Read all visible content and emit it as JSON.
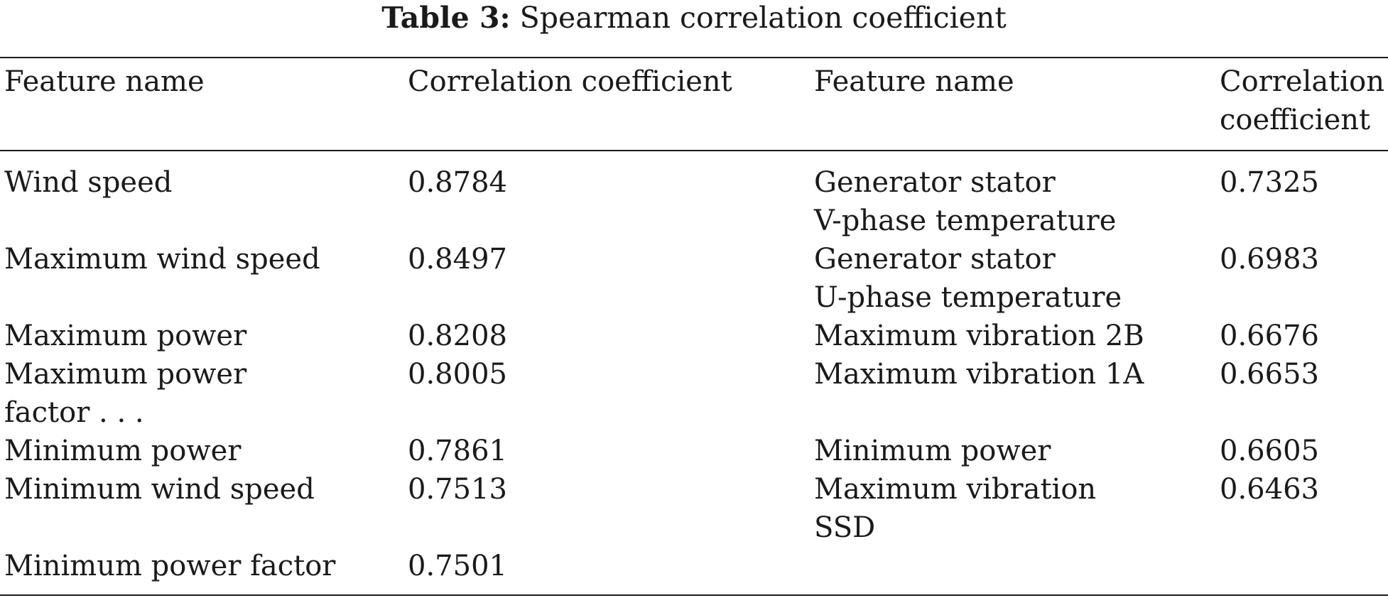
{
  "table": {
    "label": "Table 3:",
    "title": "Spearman correlation coefficient",
    "headers": {
      "feature_left": "Feature name",
      "coef_left": "Correlation coefficient",
      "feature_right": "Feature name",
      "coef_right_line1": "Correlation",
      "coef_right_line2": "coefficient"
    },
    "left_rows": [
      {
        "feature": [
          "Wind speed"
        ],
        "value": "0.8784"
      },
      {
        "feature": [
          "Maximum wind speed"
        ],
        "value": "0.8497"
      },
      {
        "feature": [
          "Maximum power"
        ],
        "value": "0.8208"
      },
      {
        "feature": [
          "Maximum power",
          "factor . . ."
        ],
        "value": "0.8005"
      },
      {
        "feature": [
          "Minimum power"
        ],
        "value": "0.7861"
      },
      {
        "feature": [
          "Minimum wind speed"
        ],
        "value": "0.7513"
      },
      {
        "feature": [
          "Minimum power factor"
        ],
        "value": "0.7501"
      }
    ],
    "right_rows": [
      {
        "feature": [
          "Generator stator",
          "V-phase temperature"
        ],
        "value": "0.7325"
      },
      {
        "feature": [
          "Generator stator",
          "U-phase temperature"
        ],
        "value": "0.6983"
      },
      {
        "feature": [
          "Maximum vibration 2B"
        ],
        "value": "0.6676"
      },
      {
        "feature": [
          "Maximum vibration 1A"
        ],
        "value": "0.6653"
      },
      {
        "feature": [
          "Minimum power"
        ],
        "value": "0.6605"
      },
      {
        "feature": [
          "Maximum vibration",
          "SSD"
        ],
        "value": "0.6463"
      }
    ]
  }
}
